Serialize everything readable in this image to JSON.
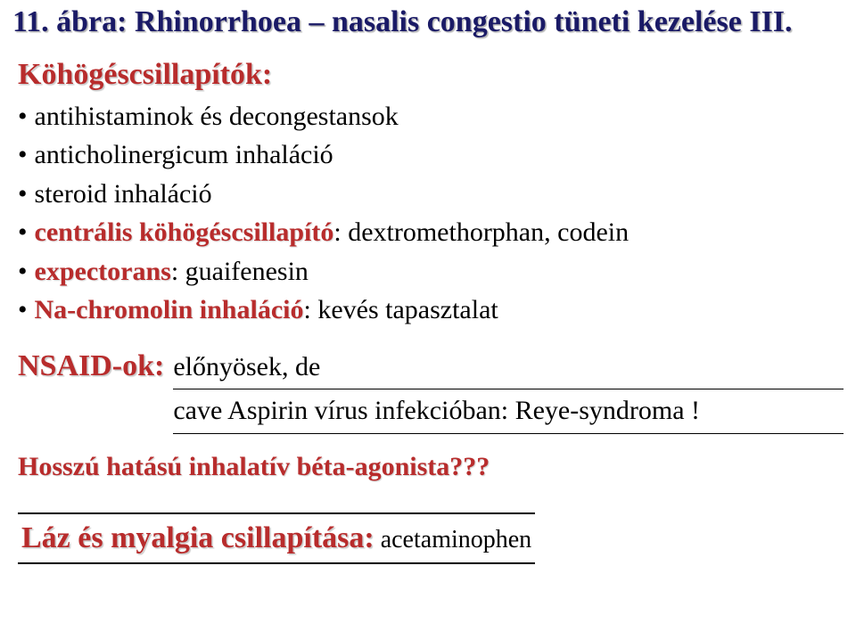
{
  "title": "11. ábra: Rhinorrhoea – nasalis congestio tüneti kezelése III.",
  "section1": {
    "heading": "Köhögéscsillapítók:",
    "bullets": [
      {
        "kw": "",
        "rest": "antihistaminok és decongestansok"
      },
      {
        "kw": "",
        "rest": "anticholinergicum inhaláció"
      },
      {
        "kw": "",
        "rest": "steroid inhaláció"
      },
      {
        "kw": "centrális köhögéscsillapító",
        "rest": ": dextromethorphan, codein"
      },
      {
        "kw": "expectorans",
        "rest": ": guaifenesin"
      },
      {
        "kw": "Na-chromolin inhaláció",
        "rest": ": kevés tapasztalat"
      }
    ]
  },
  "nsaid": {
    "label": "NSAID-ok:",
    "line1": "előnyösek, de",
    "line2": "cave Aspirin vírus infekcióban: Reye-syndroma !"
  },
  "hosszu": "Hosszú hatású inhalatív béta-agonista???",
  "footer": {
    "title": "Láz és myalgia csillapítása:",
    "rest": " acetaminophen"
  }
}
